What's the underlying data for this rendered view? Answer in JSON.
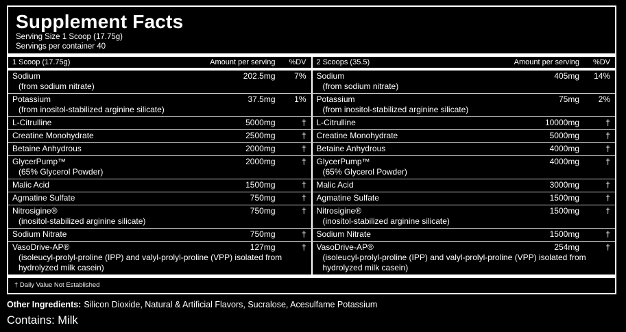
{
  "colors": {
    "background": "#000000",
    "text": "#ffffff",
    "separator": "#c9c9c9"
  },
  "header": {
    "title": "Supplement Facts",
    "serving_size": "Serving Size 1 Scoop (17.75g)",
    "servings_per_container": "Servings per container 40"
  },
  "table": {
    "left": {
      "serving": "1 Scoop (17.75g)",
      "amount_header": "Amount per serving",
      "dv_header": "%DV"
    },
    "right": {
      "serving": "2 Scoops (35.5)",
      "amount_header": "Amount per serving",
      "dv_header": "%DV"
    }
  },
  "rows": [
    {
      "name": "Sodium",
      "sub": "(from sodium nitrate)",
      "left": {
        "amount": "202.5mg",
        "dv": "7%"
      },
      "right": {
        "amount": "405mg",
        "dv": "14%"
      }
    },
    {
      "name": "Potassium",
      "sub": "(from inositol-stabilized arginine silicate)",
      "left": {
        "amount": "37.5mg",
        "dv": "1%"
      },
      "right": {
        "amount": "75mg",
        "dv": "2%"
      }
    },
    {
      "name": "L-Citrulline",
      "sub": "",
      "left": {
        "amount": "5000mg",
        "dv": "†"
      },
      "right": {
        "amount": "10000mg",
        "dv": "†"
      }
    },
    {
      "name": "Creatine Monohydrate",
      "sub": "",
      "left": {
        "amount": "2500mg",
        "dv": "†"
      },
      "right": {
        "amount": "5000mg",
        "dv": "†"
      }
    },
    {
      "name": "Betaine Anhydrous",
      "sub": "",
      "left": {
        "amount": "2000mg",
        "dv": "†"
      },
      "right": {
        "amount": "4000mg",
        "dv": "†"
      }
    },
    {
      "name": "GlycerPump™",
      "sub": "(65% Glycerol Powder)",
      "left": {
        "amount": "2000mg",
        "dv": "†"
      },
      "right": {
        "amount": "4000mg",
        "dv": "†"
      }
    },
    {
      "name": "Malic Acid",
      "sub": "",
      "left": {
        "amount": "1500mg",
        "dv": "†"
      },
      "right": {
        "amount": "3000mg",
        "dv": "†"
      }
    },
    {
      "name": "Agmatine Sulfate",
      "sub": "",
      "left": {
        "amount": "750mg",
        "dv": "†"
      },
      "right": {
        "amount": "1500mg",
        "dv": "†"
      }
    },
    {
      "name": "Nitrosigine®",
      "sub": "(inositol-stabilized arginine silicate)",
      "left": {
        "amount": "750mg",
        "dv": "†"
      },
      "right": {
        "amount": "1500mg",
        "dv": "†"
      }
    },
    {
      "name": "Sodium Nitrate",
      "sub": "",
      "left": {
        "amount": "750mg",
        "dv": "†"
      },
      "right": {
        "amount": "1500mg",
        "dv": "†"
      }
    },
    {
      "name": "VasoDrive-AP®",
      "sub": "(isoleucyl-prolyl-proline (IPP) and valyl-prolyl-proline (VPP) isolated from hydrolyzed milk casein)",
      "left": {
        "amount": "127mg",
        "dv": "†"
      },
      "right": {
        "amount": "254mg",
        "dv": "†"
      }
    }
  ],
  "footnote": "† Daily Value Not Established",
  "other_ingredients": {
    "label": "Other Ingredients:",
    "value": "Silicon Dioxide, Natural & Artificial Flavors, Sucralose, Acesulfame Potassium"
  },
  "contains": "Contains: Milk"
}
